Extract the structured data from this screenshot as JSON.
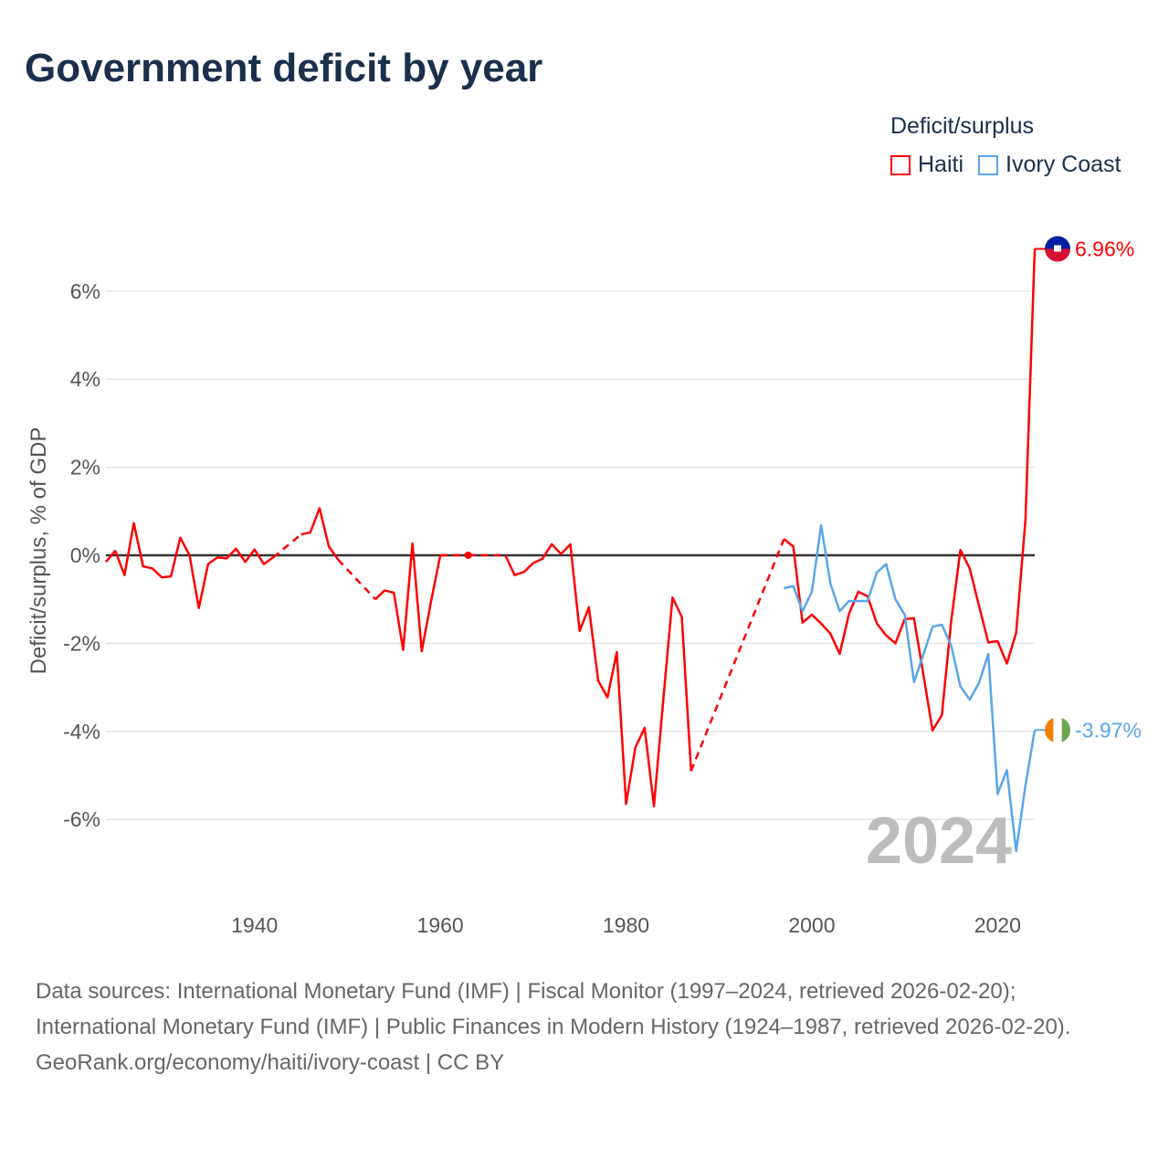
{
  "title": "Government deficit by year",
  "legend": {
    "title": "Deficit/surplus",
    "items": [
      {
        "label": "Haiti",
        "color": "#ff0000"
      },
      {
        "label": "Ivory Coast",
        "color": "#5aa5ea"
      }
    ]
  },
  "footer": {
    "sources": "Data sources: International Monetary Fund (IMF) | Fiscal Monitor (1997–2024, retrieved 2026-02-20); International Monetary Fund (IMF) | Public Finances in Modern History (1924–1987, retrieved 2026-02-20).",
    "credit": "GeoRank.org/economy/haiti/ivory-coast | CC BY"
  },
  "chart_data": {
    "type": "line",
    "title": "Government deficit by year",
    "ylabel": "Deficit/surplus, % of GDP",
    "xlabel": "",
    "xlim": [
      1924,
      2024
    ],
    "ylim": [
      -7.6,
      7.5
    ],
    "xticks": [
      1940,
      1960,
      1980,
      2000,
      2020
    ],
    "yticks": [
      {
        "v": 6,
        "label": "6%"
      },
      {
        "v": 4,
        "label": "4%"
      },
      {
        "v": 2,
        "label": "2%"
      },
      {
        "v": 0,
        "label": "0%"
      },
      {
        "v": -2,
        "label": "-2%"
      },
      {
        "v": -4,
        "label": "-4%"
      },
      {
        "v": -6,
        "label": "-6%"
      }
    ],
    "current_year_label": "2024",
    "series": [
      {
        "name": "Haiti",
        "color": "#ff0000",
        "end_label": "6.96%",
        "points": [
          [
            1924,
            -0.15
          ],
          [
            1925,
            0.1
          ],
          [
            1926,
            -0.45
          ],
          [
            1927,
            0.73
          ],
          [
            1928,
            -0.25
          ],
          [
            1929,
            -0.3
          ],
          [
            1930,
            -0.5
          ],
          [
            1931,
            -0.48
          ],
          [
            1932,
            0.4
          ],
          [
            1933,
            0.0
          ],
          [
            1934,
            -1.2
          ],
          [
            1935,
            -0.2
          ],
          [
            1936,
            -0.05
          ],
          [
            1937,
            -0.07
          ],
          [
            1938,
            0.15
          ],
          [
            1939,
            -0.15
          ],
          [
            1940,
            0.13
          ],
          [
            1941,
            -0.2
          ],
          [
            1942,
            -0.05
          ],
          [
            1945,
            0.47
          ],
          [
            1946,
            0.52
          ],
          [
            1947,
            1.07
          ],
          [
            1948,
            0.2
          ],
          [
            1949,
            -0.1
          ],
          [
            1953,
            -1.0
          ],
          [
            1954,
            -0.8
          ],
          [
            1955,
            -0.85
          ],
          [
            1956,
            -2.15
          ],
          [
            1957,
            0.27
          ],
          [
            1958,
            -2.18
          ],
          [
            1959,
            -1.05
          ],
          [
            1960,
            0.0
          ],
          [
            1963,
            0.0
          ],
          [
            1967,
            0.0
          ],
          [
            1968,
            -0.45
          ],
          [
            1969,
            -0.38
          ],
          [
            1970,
            -0.18
          ],
          [
            1971,
            -0.08
          ],
          [
            1972,
            0.25
          ],
          [
            1973,
            0.03
          ],
          [
            1974,
            0.25
          ],
          [
            1975,
            -1.72
          ],
          [
            1976,
            -1.18
          ],
          [
            1977,
            -2.85
          ],
          [
            1978,
            -3.23
          ],
          [
            1979,
            -2.2
          ],
          [
            1980,
            -5.65
          ],
          [
            1981,
            -4.37
          ],
          [
            1982,
            -3.92
          ],
          [
            1983,
            -5.7
          ],
          [
            1984,
            -3.3
          ],
          [
            1985,
            -0.96
          ],
          [
            1986,
            -1.4
          ],
          [
            1987,
            -4.9
          ],
          [
            1997,
            0.37
          ],
          [
            1998,
            0.2
          ],
          [
            1999,
            -1.53
          ],
          [
            2000,
            -1.35
          ],
          [
            2001,
            -1.55
          ],
          [
            2002,
            -1.78
          ],
          [
            2003,
            -2.24
          ],
          [
            2004,
            -1.33
          ],
          [
            2005,
            -0.83
          ],
          [
            2006,
            -0.93
          ],
          [
            2007,
            -1.55
          ],
          [
            2008,
            -1.82
          ],
          [
            2009,
            -2.0
          ],
          [
            2010,
            -1.45
          ],
          [
            2011,
            -1.43
          ],
          [
            2012,
            -2.7
          ],
          [
            2013,
            -3.98
          ],
          [
            2014,
            -3.63
          ],
          [
            2015,
            -1.5
          ],
          [
            2016,
            0.12
          ],
          [
            2017,
            -0.3
          ],
          [
            2018,
            -1.15
          ],
          [
            2019,
            -1.98
          ],
          [
            2020,
            -1.95
          ],
          [
            2021,
            -2.46
          ],
          [
            2022,
            -1.76
          ],
          [
            2023,
            0.8
          ],
          [
            2024,
            6.96
          ]
        ]
      },
      {
        "name": "Ivory Coast",
        "color": "#5aa5ea",
        "end_label": "-3.97%",
        "points": [
          [
            1997,
            -0.75
          ],
          [
            1998,
            -0.7
          ],
          [
            1999,
            -1.27
          ],
          [
            2000,
            -0.83
          ],
          [
            2001,
            0.68
          ],
          [
            2002,
            -0.64
          ],
          [
            2003,
            -1.27
          ],
          [
            2004,
            -1.04
          ],
          [
            2005,
            -1.04
          ],
          [
            2006,
            -1.04
          ],
          [
            2007,
            -0.39
          ],
          [
            2008,
            -0.2
          ],
          [
            2009,
            -1.0
          ],
          [
            2010,
            -1.35
          ],
          [
            2011,
            -2.88
          ],
          [
            2012,
            -2.26
          ],
          [
            2013,
            -1.62
          ],
          [
            2014,
            -1.58
          ],
          [
            2015,
            -2.05
          ],
          [
            2016,
            -2.98
          ],
          [
            2017,
            -3.28
          ],
          [
            2018,
            -2.9
          ],
          [
            2019,
            -2.24
          ],
          [
            2020,
            -5.42
          ],
          [
            2021,
            -4.88
          ],
          [
            2022,
            -6.72
          ],
          [
            2023,
            -5.23
          ],
          [
            2024,
            -3.97
          ]
        ]
      }
    ]
  }
}
